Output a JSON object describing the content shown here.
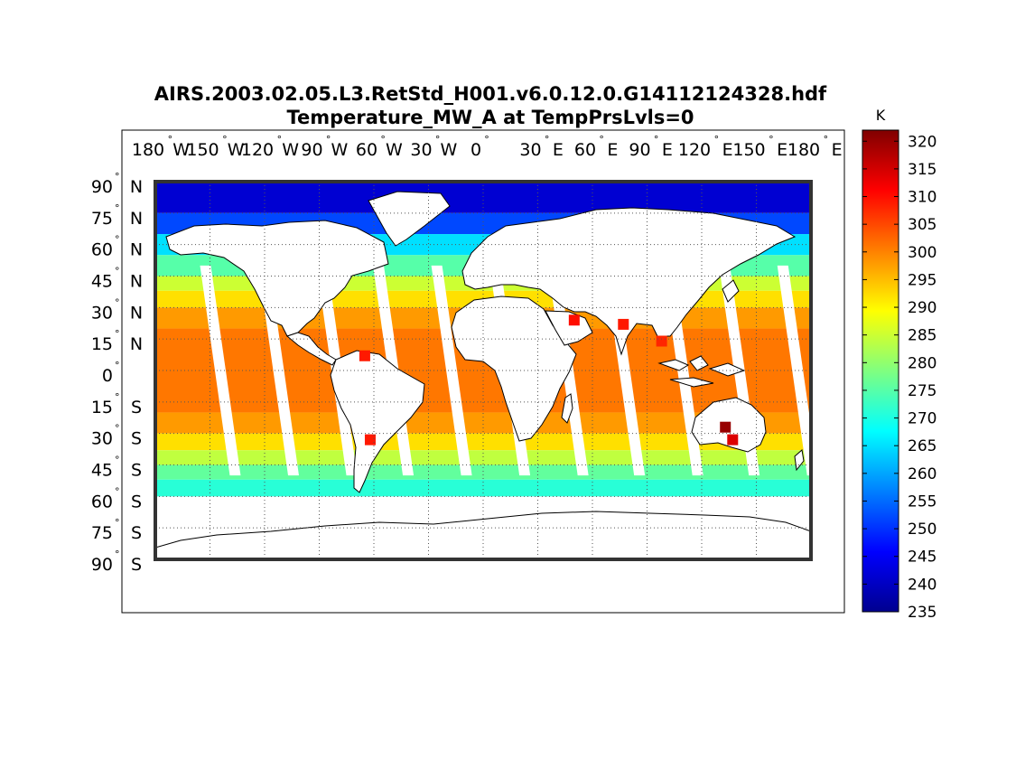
{
  "title_line1": "AIRS.2003.02.05.L3.RetStd_H001.v6.0.12.0.G14112124328.hdf",
  "title_line2": "Temperature_MW_A at TempPrsLvls=0",
  "degree_symbol": "°",
  "colors": {
    "land": "#ffffff",
    "frame": "#333333",
    "grid": "#555555"
  },
  "icons": [
    "world-map-coastlines"
  ],
  "chart_data": {
    "type": "heatmap",
    "projection": "equirectangular",
    "variable": "Temperature_MW_A",
    "grid": true,
    "lon_ticks": [
      {
        "value": -180,
        "label": "180",
        "hemi": "W"
      },
      {
        "value": -150,
        "label": "150",
        "hemi": "W"
      },
      {
        "value": -120,
        "label": "120",
        "hemi": "W"
      },
      {
        "value": -90,
        "label": "90",
        "hemi": "W"
      },
      {
        "value": -60,
        "label": "60",
        "hemi": "W"
      },
      {
        "value": -30,
        "label": "30",
        "hemi": "W"
      },
      {
        "value": 0,
        "label": "0",
        "hemi": ""
      },
      {
        "value": 30,
        "label": "30",
        "hemi": "E"
      },
      {
        "value": 60,
        "label": "60",
        "hemi": "E"
      },
      {
        "value": 90,
        "label": "90",
        "hemi": "E"
      },
      {
        "value": 120,
        "label": "120",
        "hemi": "E"
      },
      {
        "value": 150,
        "label": "150",
        "hemi": "E"
      },
      {
        "value": 180,
        "label": "180",
        "hemi": "E"
      }
    ],
    "lat_ticks": [
      {
        "value": 90,
        "label": "90",
        "hemi": "N"
      },
      {
        "value": 75,
        "label": "75",
        "hemi": "N"
      },
      {
        "value": 60,
        "label": "60",
        "hemi": "N"
      },
      {
        "value": 45,
        "label": "45",
        "hemi": "N"
      },
      {
        "value": 30,
        "label": "30",
        "hemi": "N"
      },
      {
        "value": 15,
        "label": "15",
        "hemi": "N"
      },
      {
        "value": 0,
        "label": "0",
        "hemi": ""
      },
      {
        "value": -15,
        "label": "15",
        "hemi": "S"
      },
      {
        "value": -30,
        "label": "30",
        "hemi": "S"
      },
      {
        "value": -45,
        "label": "45",
        "hemi": "S"
      },
      {
        "value": -60,
        "label": "60",
        "hemi": "S"
      },
      {
        "value": -75,
        "label": "75",
        "hemi": "S"
      },
      {
        "value": -90,
        "label": "90",
        "hemi": "S"
      }
    ],
    "lat_bands": [
      {
        "lat_top": 90,
        "lat_bottom": 75,
        "value": 242
      },
      {
        "lat_top": 75,
        "lat_bottom": 65,
        "value": 252
      },
      {
        "lat_top": 65,
        "lat_bottom": 55,
        "value": 265
      },
      {
        "lat_top": 55,
        "lat_bottom": 45,
        "value": 275
      },
      {
        "lat_top": 45,
        "lat_bottom": 38,
        "value": 285
      },
      {
        "lat_top": 38,
        "lat_bottom": 30,
        "value": 292
      },
      {
        "lat_top": 30,
        "lat_bottom": 20,
        "value": 298
      },
      {
        "lat_top": 20,
        "lat_bottom": -20,
        "value": 301
      },
      {
        "lat_top": -20,
        "lat_bottom": -30,
        "value": 298
      },
      {
        "lat_top": -30,
        "lat_bottom": -38,
        "value": 292
      },
      {
        "lat_top": -38,
        "lat_bottom": -45,
        "value": 284
      },
      {
        "lat_top": -45,
        "lat_bottom": -52,
        "value": 276
      },
      {
        "lat_top": -52,
        "lat_bottom": -60,
        "value": 271
      }
    ],
    "hot_spots": [
      {
        "lat": -27,
        "lon": 133,
        "value": 320
      },
      {
        "lat": -33,
        "lon": 137,
        "value": 314
      },
      {
        "lat": 24,
        "lon": 50,
        "value": 310
      },
      {
        "lat": 22,
        "lon": 77,
        "value": 309
      },
      {
        "lat": 14,
        "lon": 98,
        "value": 308
      },
      {
        "lat": 7,
        "lon": -65,
        "value": 309
      },
      {
        "lat": -33,
        "lon": -62,
        "value": 309
      }
    ],
    "colorbar": {
      "unit": "K",
      "min": 235,
      "max": 322,
      "ticks": [
        320,
        315,
        310,
        305,
        300,
        295,
        290,
        285,
        280,
        275,
        270,
        265,
        260,
        255,
        250,
        245,
        240,
        235
      ],
      "colormap": "jet"
    }
  }
}
